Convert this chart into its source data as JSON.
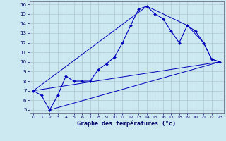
{
  "background_color": "#cce8f0",
  "grid_color": "#b0c8d0",
  "line_color": "#0000bb",
  "x_hours": [
    0,
    1,
    2,
    3,
    4,
    5,
    6,
    7,
    8,
    9,
    10,
    11,
    12,
    13,
    14,
    15,
    16,
    17,
    18,
    19,
    20,
    21,
    22,
    23
  ],
  "temp_curve": [
    7.0,
    6.5,
    5.0,
    6.5,
    8.5,
    8.0,
    8.0,
    8.0,
    9.2,
    9.8,
    10.5,
    12.0,
    13.8,
    15.5,
    15.8,
    15.0,
    14.5,
    13.2,
    12.0,
    13.8,
    13.2,
    12.0,
    10.3,
    10.0
  ],
  "line1_x": [
    0,
    23
  ],
  "line1_y": [
    7.0,
    10.0
  ],
  "line2_x": [
    2,
    23
  ],
  "line2_y": [
    5.0,
    10.0
  ],
  "line3_x": [
    0,
    14,
    19,
    21,
    22,
    23
  ],
  "line3_y": [
    7.0,
    15.8,
    13.8,
    12.0,
    10.3,
    10.0
  ],
  "ylim_min": 5,
  "ylim_max": 16,
  "yticks": [
    5,
    6,
    7,
    8,
    9,
    10,
    11,
    12,
    13,
    14,
    15,
    16
  ],
  "xticks": [
    0,
    1,
    2,
    3,
    4,
    5,
    6,
    7,
    8,
    9,
    10,
    11,
    12,
    13,
    14,
    15,
    16,
    17,
    18,
    19,
    20,
    21,
    22,
    23
  ],
  "xlabel": "Graphe des températures (°c)"
}
